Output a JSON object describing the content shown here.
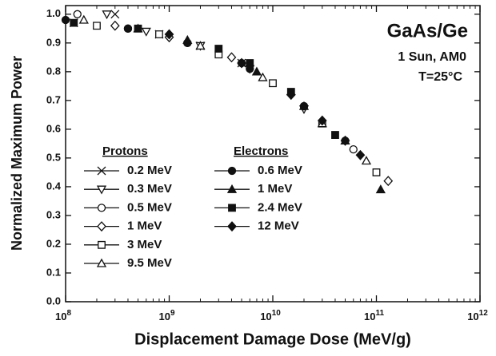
{
  "chart_data": {
    "type": "scatter",
    "x_label": "Displacement Damage Dose (MeV/g)",
    "y_label": "Normalized Maximum Power",
    "annotations": [
      "GaAs/Ge",
      "1 Sun, AM0",
      "T=25°C"
    ],
    "xscale": "log",
    "xlim": [
      100000000,
      1000000000000
    ],
    "xticks": [
      {
        "value": 100000000,
        "label": "10",
        "exponent": "8"
      },
      {
        "value": 1000000000,
        "label": "10",
        "exponent": "9"
      },
      {
        "value": 10000000000,
        "label": "10",
        "exponent": "10"
      },
      {
        "value": 100000000000,
        "label": "10",
        "exponent": "11"
      },
      {
        "value": 1000000000000,
        "label": "10",
        "exponent": "12"
      }
    ],
    "ylim": [
      0,
      1.03
    ],
    "yticks": [
      {
        "value": 0,
        "label": "0.0"
      },
      0.1,
      0.2,
      0.3,
      0.4,
      0.5,
      0.6,
      0.7,
      0.8,
      0.9,
      {
        "value": 1,
        "label": "1.0"
      }
    ],
    "grid": false,
    "series_groups": [
      {
        "name": "Protons",
        "series": [
          {
            "name": "0.2 MeV",
            "marker": "x",
            "filled": false,
            "color": "#111111",
            "x": [
              120000000,
              300000000,
              800000000,
              2000000000,
              5000000000
            ],
            "values": [
              0.97,
              1.0,
              0.93,
              0.89,
              0.83
            ]
          },
          {
            "name": "0.3 MeV",
            "marker": "triangle-down",
            "filled": false,
            "color": "#111111",
            "x": [
              250000000,
              600000000,
              2000000000,
              6000000000,
              20000000000
            ],
            "values": [
              1.0,
              0.94,
              0.89,
              0.81,
              0.67
            ]
          },
          {
            "name": "0.5 MeV",
            "marker": "circle",
            "filled": false,
            "color": "#111111",
            "x": [
              130000000,
              400000000,
              1500000000,
              5000000000,
              20000000000,
              60000000000
            ],
            "values": [
              1.0,
              0.95,
              0.9,
              0.83,
              0.68,
              0.53
            ]
          },
          {
            "name": "1 MeV",
            "marker": "diamond",
            "filled": false,
            "color": "#111111",
            "x": [
              300000000,
              1000000000,
              4000000000,
              15000000000,
              50000000000,
              130000000000
            ],
            "values": [
              0.96,
              0.92,
              0.85,
              0.72,
              0.56,
              0.42
            ]
          },
          {
            "name": "3 MeV",
            "marker": "square",
            "filled": false,
            "color": "#111111",
            "x": [
              200000000,
              800000000,
              3000000000,
              10000000000,
              30000000000,
              100000000000
            ],
            "values": [
              0.96,
              0.93,
              0.86,
              0.76,
              0.62,
              0.45
            ]
          },
          {
            "name": "9.5 MeV",
            "marker": "triangle-up",
            "filled": false,
            "color": "#111111",
            "x": [
              150000000,
              500000000,
              2000000000,
              8000000000,
              30000000000,
              80000000000
            ],
            "values": [
              0.98,
              0.95,
              0.89,
              0.78,
              0.62,
              0.49
            ]
          }
        ]
      },
      {
        "name": "Electrons",
        "series": [
          {
            "name": "0.6 MeV",
            "marker": "circle",
            "filled": true,
            "color": "#111111",
            "x": [
              100000000,
              400000000,
              1500000000,
              6000000000,
              20000000000,
              50000000000
            ],
            "values": [
              0.98,
              0.95,
              0.9,
              0.81,
              0.68,
              0.56
            ]
          },
          {
            "name": "1 MeV",
            "marker": "triangle-up",
            "filled": true,
            "color": "#111111",
            "x": [
              1500000000,
              7000000000,
              20000000000,
              50000000000,
              110000000000
            ],
            "values": [
              0.91,
              0.8,
              0.68,
              0.56,
              0.39
            ]
          },
          {
            "name": "2.4 MeV",
            "marker": "square",
            "filled": true,
            "color": "#111111",
            "x": [
              120000000,
              500000000,
              3000000000,
              6000000000,
              15000000000,
              40000000000
            ],
            "values": [
              0.97,
              0.95,
              0.88,
              0.83,
              0.73,
              0.58
            ]
          },
          {
            "name": "12 MeV",
            "marker": "diamond",
            "filled": true,
            "color": "#111111",
            "x": [
              1000000000,
              5000000000,
              15000000000,
              30000000000,
              70000000000
            ],
            "values": [
              0.93,
              0.83,
              0.72,
              0.63,
              0.51
            ]
          }
        ]
      }
    ]
  }
}
